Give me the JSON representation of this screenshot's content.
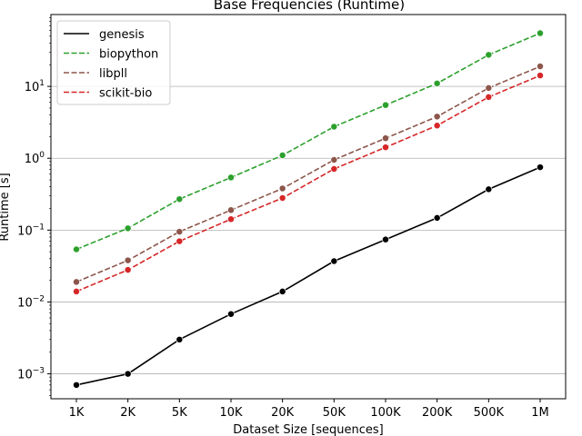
{
  "chart_data": {
    "type": "line",
    "title": "Base Frequencies  (Runtime)",
    "xlabel": "Dataset Size  [sequences]",
    "ylabel": "Runtime  [s]",
    "yscale": "log",
    "ylim": [
      0.00045,
      100
    ],
    "yticks": [
      {
        "value": 0.001,
        "base": "10",
        "exp": "−3"
      },
      {
        "value": 0.01,
        "base": "10",
        "exp": "−2"
      },
      {
        "value": 0.1,
        "base": "10",
        "exp": "−1"
      },
      {
        "value": 1,
        "base": "10",
        "exp": "0"
      },
      {
        "value": 10,
        "base": "10",
        "exp": "1"
      }
    ],
    "categories": [
      "1K",
      "2K",
      "5K",
      "10K",
      "20K",
      "50K",
      "100K",
      "200K",
      "500K",
      "1M"
    ],
    "grid": "horizontal",
    "legend_position": "upper-left",
    "series": [
      {
        "name": "genesis",
        "color": "#000000",
        "dash": "solid",
        "values": [
          0.0007,
          0.001,
          0.003,
          0.0068,
          0.014,
          0.037,
          0.074,
          0.148,
          0.37,
          0.75
        ]
      },
      {
        "name": "biopython",
        "color": "#2ca02c",
        "dash": "dashed",
        "values": [
          0.054,
          0.106,
          0.27,
          0.54,
          1.1,
          2.75,
          5.5,
          11,
          27.5,
          55
        ]
      },
      {
        "name": "libpll",
        "color": "#8c564b",
        "dash": "dashed",
        "values": [
          0.019,
          0.038,
          0.095,
          0.19,
          0.38,
          0.95,
          1.9,
          3.8,
          9.5,
          19
        ]
      },
      {
        "name": "scikit-bio",
        "color": "#d62728",
        "dash": "dashed",
        "values": [
          0.014,
          0.028,
          0.07,
          0.142,
          0.28,
          0.71,
          1.42,
          2.85,
          7.1,
          14.2
        ]
      }
    ]
  }
}
